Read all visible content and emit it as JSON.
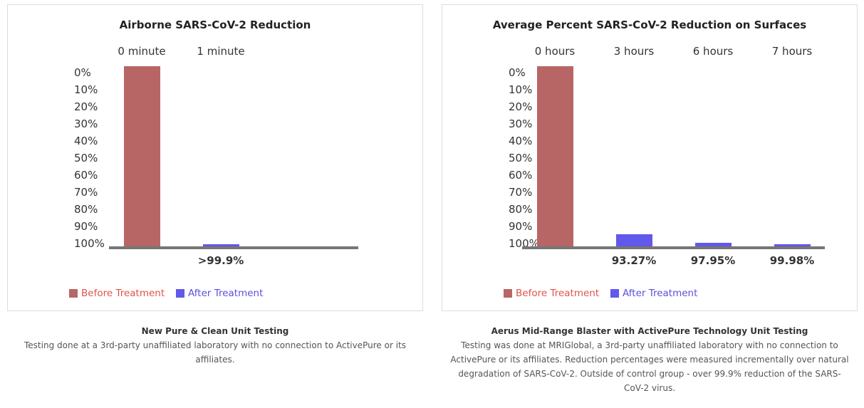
{
  "chart_data": [
    {
      "type": "bar",
      "title": "Airborne SARS-CoV-2 Reduction",
      "categories": [
        "0 minute",
        "1 minute"
      ],
      "series": [
        {
          "name": "Before Treatment",
          "values": [
            0,
            null
          ]
        },
        {
          "name": "After Treatment",
          "values": [
            null,
            99.9
          ]
        }
      ],
      "value_labels": [
        "",
        ">99.9%"
      ],
      "yticks": [
        "0%",
        "10%",
        "20%",
        "30%",
        "40%",
        "50%",
        "60%",
        "70%",
        "80%",
        "90%",
        "100%"
      ],
      "ylim": [
        0,
        100
      ],
      "y_inverted": true,
      "legend": [
        "Before Treatment",
        "After Treatment"
      ],
      "legend_position": "bottom-left",
      "grid": false
    },
    {
      "type": "bar",
      "title": "Average Percent SARS-CoV-2 Reduction on Surfaces",
      "categories": [
        "0 hours",
        "3 hours",
        "6 hours",
        "7 hours"
      ],
      "series": [
        {
          "name": "Before Treatment",
          "values": [
            0,
            null,
            null,
            null
          ]
        },
        {
          "name": "After Treatment",
          "values": [
            null,
            93.27,
            97.95,
            99.98
          ]
        }
      ],
      "value_labels": [
        "",
        "93.27%",
        "97.95%",
        "99.98%"
      ],
      "yticks": [
        "0%",
        "10%",
        "20%",
        "30%",
        "40%",
        "50%",
        "60%",
        "70%",
        "80%",
        "90%",
        "100%"
      ],
      "ylim": [
        0,
        100
      ],
      "y_inverted": true,
      "legend": [
        "Before Treatment",
        "After Treatment"
      ],
      "legend_position": "bottom-left",
      "grid": false
    }
  ],
  "colors": {
    "before": "#b86566",
    "after": "#6158ec",
    "before_text": "#e0544b",
    "after_text": "#5b4fe0",
    "axis": "#767676"
  },
  "captions": [
    {
      "title": "New Pure & Clean Unit Testing",
      "body": "Testing done at a 3rd-party unaffiliated laboratory with no connection to ActivePure or its affiliates."
    },
    {
      "title": "Aerus Mid-Range Blaster with ActivePure Technology Unit Testing",
      "body": "Testing was done at MRIGlobal, a 3rd-party unaffiliated laboratory with no connection to ActivePure or its affiliates. Reduction percentages were measured incrementally over natural degradation of SARS-CoV-2. Outside of control group - over 99.9% reduction of the SARS-CoV-2 virus."
    }
  ]
}
